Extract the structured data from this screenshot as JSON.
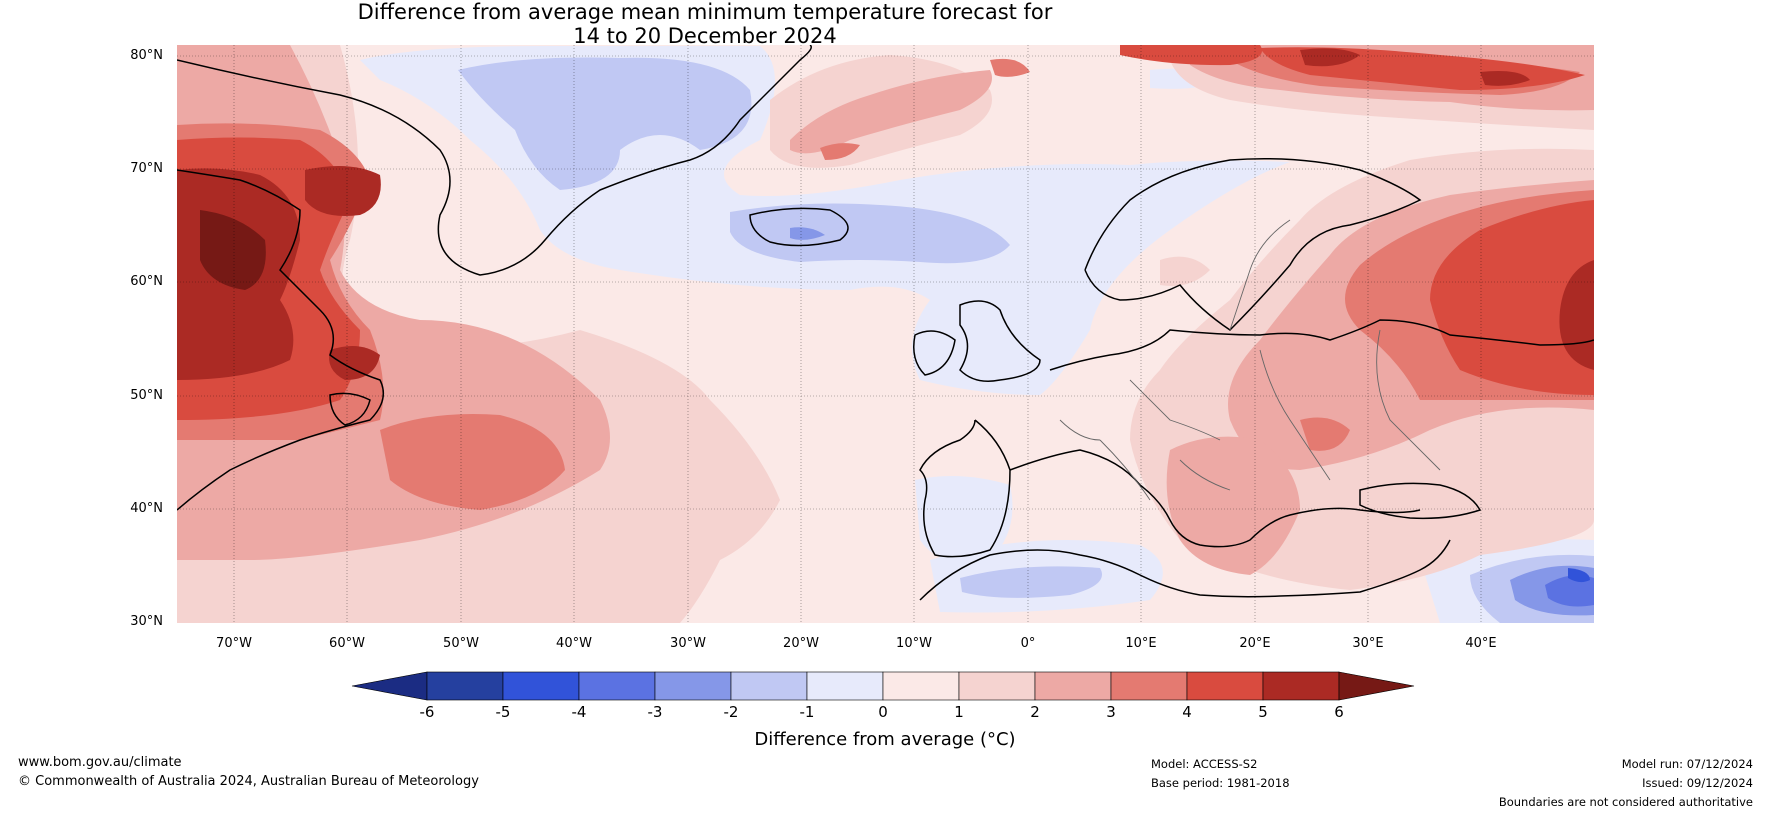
{
  "title": {
    "line1": "Difference from average mean minimum temperature forecast for",
    "line2": "14 to 20 December 2024"
  },
  "map": {
    "lat_labels": [
      "80°N",
      "70°N",
      "60°N",
      "50°N",
      "40°N",
      "30°N"
    ],
    "lon_labels": [
      "70°W",
      "60°W",
      "50°W",
      "40°W",
      "30°W",
      "20°W",
      "10°W",
      "0°",
      "10°E",
      "20°E",
      "30°E",
      "40°E"
    ],
    "extent": {
      "lon": [
        -75,
        50
      ],
      "lat": [
        30,
        81
      ]
    }
  },
  "colorbar": {
    "ticks": [
      "-6",
      "-5",
      "-4",
      "-3",
      "-2",
      "-1",
      "0",
      "1",
      "2",
      "3",
      "4",
      "5",
      "6"
    ],
    "colors": [
      "#25409f",
      "#3153d9",
      "#5b72e2",
      "#8597e8",
      "#c0c8f3",
      "#e7eafb",
      "#fbe9e7",
      "#f5d3d0",
      "#eda9a5",
      "#e47a71",
      "#d94b3f",
      "#ab2a24"
    ],
    "under_color": "#1b2c83",
    "over_color": "#761915",
    "label": "Difference from average (°C)"
  },
  "footer": {
    "url": "www.bom.gov.au/climate",
    "copyright": "© Commonwealth of Australia 2024, Australian Bureau of Meteorology",
    "model": "Model: ACCESS-S2",
    "base_period": "Base period: 1981-2018",
    "model_run": "Model run: 07/12/2024",
    "issued": "Issued: 09/12/2024",
    "disclaimer": "Boundaries are not considered authoritative"
  }
}
